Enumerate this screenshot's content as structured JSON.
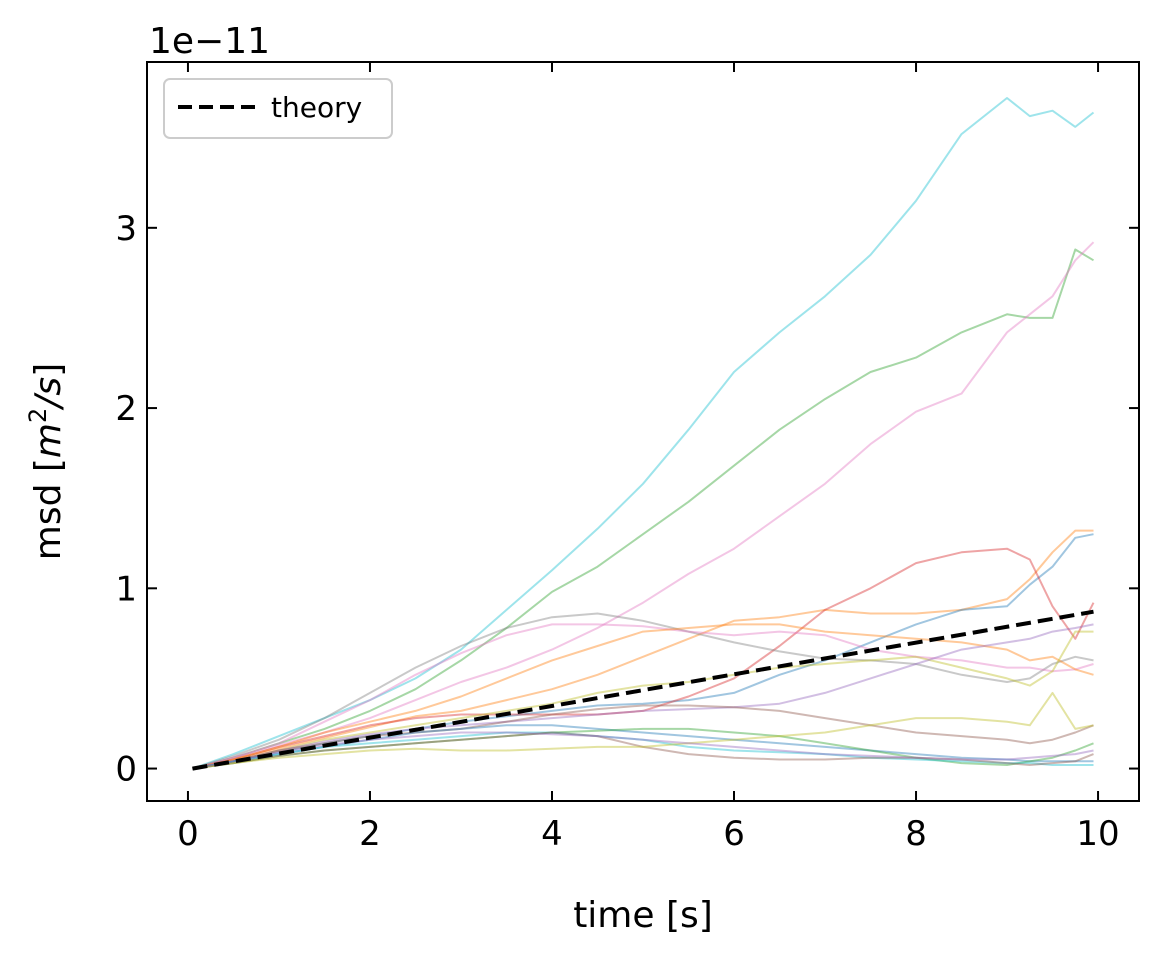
{
  "chart_data": {
    "type": "line",
    "offset_text": "1e−11",
    "xlabel": "time [s]",
    "ylabel_parts": {
      "prefix": "msd [",
      "m": "m",
      "sup": "2",
      "rest": "/s",
      "suffix": "]"
    },
    "xlim": [
      -0.45,
      10.45
    ],
    "ylim": [
      -0.18,
      3.92
    ],
    "x_ticks": [
      0,
      2,
      4,
      6,
      8,
      10
    ],
    "y_ticks": [
      0,
      1,
      2,
      3
    ],
    "x_tick_labels": [
      "0",
      "2",
      "4",
      "6",
      "8",
      "10"
    ],
    "y_tick_labels": [
      "0",
      "1",
      "2",
      "3"
    ],
    "legend": {
      "position": "upper left",
      "entries": [
        "theory"
      ]
    },
    "theory": {
      "x": [
        0.05,
        9.95
      ],
      "y": [
        0.0,
        0.87
      ],
      "color": "#000000",
      "style": "dashed"
    },
    "x": [
      0.05,
      0.5,
      1,
      1.5,
      2,
      2.5,
      3,
      3.5,
      4,
      4.5,
      5,
      5.5,
      6,
      6.5,
      7,
      7.5,
      8,
      8.5,
      9,
      9.25,
      9.5,
      9.75,
      9.95
    ],
    "series": [
      {
        "color": "#17becf",
        "values": [
          0,
          0.08,
          0.18,
          0.28,
          0.38,
          0.5,
          0.66,
          0.88,
          1.1,
          1.33,
          1.58,
          1.88,
          2.2,
          2.42,
          2.62,
          2.85,
          3.15,
          3.52,
          3.72,
          3.62,
          3.65,
          3.56,
          3.64
        ]
      },
      {
        "color": "#2ca02c",
        "values": [
          0,
          0.06,
          0.14,
          0.22,
          0.32,
          0.44,
          0.6,
          0.78,
          0.98,
          1.12,
          1.3,
          1.48,
          1.68,
          1.88,
          2.05,
          2.2,
          2.28,
          2.42,
          2.52,
          2.5,
          2.5,
          2.88,
          2.82
        ]
      },
      {
        "color": "#e377c2",
        "values": [
          0,
          0.06,
          0.13,
          0.2,
          0.28,
          0.38,
          0.48,
          0.56,
          0.66,
          0.78,
          0.92,
          1.08,
          1.22,
          1.4,
          1.58,
          1.8,
          1.98,
          2.08,
          2.42,
          2.52,
          2.62,
          2.82,
          2.92
        ]
      },
      {
        "color": "#ff7f0e",
        "values": [
          0,
          0.05,
          0.11,
          0.17,
          0.23,
          0.29,
          0.32,
          0.38,
          0.44,
          0.52,
          0.62,
          0.72,
          0.82,
          0.84,
          0.88,
          0.86,
          0.86,
          0.88,
          0.94,
          1.05,
          1.2,
          1.32,
          1.32
        ]
      },
      {
        "color": "#1f77b4",
        "values": [
          0,
          0.04,
          0.09,
          0.14,
          0.18,
          0.22,
          0.26,
          0.29,
          0.32,
          0.35,
          0.36,
          0.38,
          0.42,
          0.52,
          0.6,
          0.7,
          0.8,
          0.88,
          0.9,
          1.02,
          1.12,
          1.28,
          1.3
        ]
      },
      {
        "color": "#d62728",
        "values": [
          0,
          0.05,
          0.12,
          0.18,
          0.24,
          0.28,
          0.3,
          0.3,
          0.3,
          0.3,
          0.32,
          0.4,
          0.5,
          0.68,
          0.88,
          1.0,
          1.14,
          1.2,
          1.22,
          1.16,
          0.9,
          0.72,
          0.92
        ]
      },
      {
        "color": "#7f7f7f",
        "values": [
          0,
          0.07,
          0.16,
          0.28,
          0.42,
          0.56,
          0.68,
          0.78,
          0.84,
          0.86,
          0.82,
          0.76,
          0.7,
          0.65,
          0.61,
          0.6,
          0.58,
          0.52,
          0.48,
          0.5,
          0.58,
          0.62,
          0.6
        ]
      },
      {
        "color": "#e377c2",
        "values": [
          0,
          0.06,
          0.14,
          0.26,
          0.38,
          0.52,
          0.64,
          0.74,
          0.8,
          0.8,
          0.79,
          0.76,
          0.74,
          0.76,
          0.74,
          0.66,
          0.62,
          0.6,
          0.56,
          0.56,
          0.54,
          0.55,
          0.58
        ]
      },
      {
        "color": "#ff7f0e",
        "values": [
          0,
          0.05,
          0.12,
          0.2,
          0.26,
          0.32,
          0.4,
          0.5,
          0.6,
          0.68,
          0.76,
          0.78,
          0.8,
          0.8,
          0.76,
          0.74,
          0.72,
          0.7,
          0.66,
          0.6,
          0.62,
          0.55,
          0.52
        ]
      },
      {
        "color": "#bcbd22",
        "values": [
          0,
          0.04,
          0.1,
          0.16,
          0.2,
          0.24,
          0.28,
          0.32,
          0.36,
          0.42,
          0.46,
          0.48,
          0.52,
          0.56,
          0.58,
          0.6,
          0.62,
          0.56,
          0.5,
          0.46,
          0.54,
          0.76,
          0.76
        ]
      },
      {
        "color": "#9467bd",
        "values": [
          0,
          0.04,
          0.1,
          0.15,
          0.19,
          0.22,
          0.24,
          0.26,
          0.28,
          0.3,
          0.32,
          0.33,
          0.34,
          0.36,
          0.42,
          0.5,
          0.58,
          0.66,
          0.7,
          0.72,
          0.76,
          0.78,
          0.8
        ]
      },
      {
        "color": "#8c564b",
        "values": [
          0,
          0.04,
          0.1,
          0.14,
          0.18,
          0.2,
          0.22,
          0.26,
          0.3,
          0.33,
          0.35,
          0.35,
          0.34,
          0.32,
          0.28,
          0.24,
          0.2,
          0.18,
          0.16,
          0.14,
          0.16,
          0.2,
          0.24
        ]
      },
      {
        "color": "#1f77b4",
        "values": [
          0,
          0.04,
          0.08,
          0.12,
          0.16,
          0.2,
          0.22,
          0.24,
          0.24,
          0.22,
          0.2,
          0.18,
          0.16,
          0.14,
          0.12,
          0.1,
          0.08,
          0.06,
          0.05,
          0.04,
          0.04,
          0.04,
          0.04
        ]
      },
      {
        "color": "#2ca02c",
        "values": [
          0,
          0.03,
          0.07,
          0.1,
          0.12,
          0.14,
          0.16,
          0.18,
          0.2,
          0.21,
          0.22,
          0.22,
          0.2,
          0.18,
          0.14,
          0.1,
          0.06,
          0.03,
          0.02,
          0.04,
          0.06,
          0.1,
          0.14
        ]
      },
      {
        "color": "#17becf",
        "values": [
          0,
          0.04,
          0.08,
          0.12,
          0.14,
          0.16,
          0.18,
          0.2,
          0.2,
          0.18,
          0.16,
          0.12,
          0.1,
          0.09,
          0.08,
          0.06,
          0.05,
          0.04,
          0.03,
          0.03,
          0.02,
          0.02,
          0.02
        ]
      },
      {
        "color": "#8c564b",
        "values": [
          0,
          0.03,
          0.07,
          0.1,
          0.12,
          0.14,
          0.16,
          0.18,
          0.2,
          0.18,
          0.12,
          0.08,
          0.06,
          0.05,
          0.05,
          0.06,
          0.06,
          0.05,
          0.03,
          0.02,
          0.03,
          0.04,
          0.08
        ]
      },
      {
        "color": "#bcbd22",
        "values": [
          0,
          0.03,
          0.06,
          0.08,
          0.1,
          0.11,
          0.1,
          0.1,
          0.11,
          0.12,
          0.12,
          0.14,
          0.16,
          0.18,
          0.2,
          0.24,
          0.28,
          0.28,
          0.26,
          0.24,
          0.42,
          0.22,
          0.24
        ]
      },
      {
        "color": "#9467bd",
        "values": [
          0,
          0.04,
          0.09,
          0.13,
          0.16,
          0.18,
          0.2,
          0.2,
          0.19,
          0.18,
          0.16,
          0.14,
          0.12,
          0.1,
          0.08,
          0.07,
          0.06,
          0.05,
          0.05,
          0.06,
          0.07,
          0.08,
          0.1
        ]
      }
    ]
  }
}
